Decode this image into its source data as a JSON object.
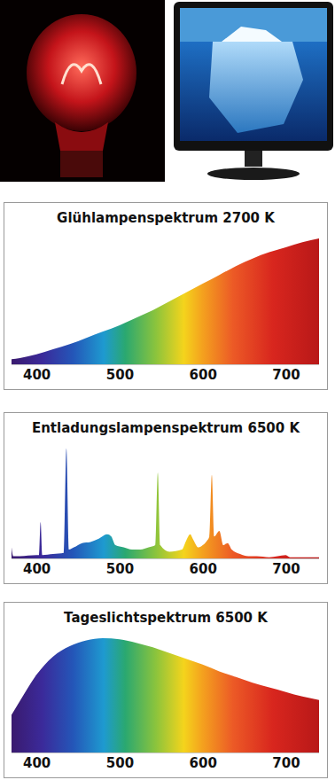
{
  "chart_data": [
    {
      "type": "area",
      "title": "Glühlampenspektrum 2700 K",
      "x": [
        370,
        380,
        400,
        420,
        440,
        460,
        480,
        500,
        520,
        540,
        560,
        580,
        600,
        620,
        640,
        660,
        680,
        700,
        720,
        740
      ],
      "values": [
        4,
        5,
        8,
        12,
        16,
        21,
        26,
        31,
        37,
        43,
        50,
        57,
        64,
        71,
        78,
        84,
        89,
        93,
        97,
        100
      ],
      "xlim": [
        370,
        740
      ],
      "xticks": [
        400,
        500,
        600,
        700
      ],
      "ylim": [
        0,
        100
      ],
      "tick_labels": "x"
    },
    {
      "type": "area",
      "title": "Entladungslampenspektrum 6500 K",
      "x": [
        370,
        372,
        380,
        400,
        403,
        405,
        407,
        420,
        433,
        436,
        439,
        445,
        455,
        465,
        475,
        485,
        490,
        495,
        505,
        515,
        525,
        535,
        543,
        546,
        549,
        560,
        575,
        580,
        585,
        588,
        595,
        600,
        605,
        608,
        611,
        614,
        620,
        625,
        630,
        635,
        645,
        655,
        665,
        680,
        700,
        705,
        720,
        740
      ],
      "values": [
        10,
        2,
        2,
        3,
        3,
        33,
        3,
        4,
        5,
        100,
        8,
        10,
        14,
        15,
        18,
        22,
        20,
        12,
        10,
        8,
        8,
        10,
        12,
        78,
        12,
        6,
        8,
        16,
        22,
        18,
        10,
        12,
        16,
        20,
        76,
        20,
        25,
        12,
        14,
        8,
        4,
        2,
        2,
        1,
        3,
        1,
        1,
        1
      ],
      "xlim": [
        370,
        740
      ],
      "xticks": [
        400,
        500,
        600,
        700
      ],
      "ylim": [
        0,
        100
      ],
      "tick_labels": "x"
    },
    {
      "type": "area",
      "title": "Tageslichtspektrum 6500 K",
      "x": [
        370,
        380,
        400,
        420,
        440,
        460,
        480,
        500,
        520,
        540,
        560,
        580,
        600,
        620,
        640,
        660,
        680,
        700,
        720,
        740
      ],
      "values": [
        33,
        45,
        68,
        84,
        93,
        98,
        100,
        99,
        96,
        92,
        87,
        82,
        77,
        71,
        66,
        61,
        57,
        53,
        49,
        46
      ],
      "xlim": [
        370,
        740
      ],
      "xticks": [
        400,
        500,
        600,
        700
      ],
      "ylim": [
        0,
        100
      ],
      "tick_labels": "x"
    }
  ]
}
